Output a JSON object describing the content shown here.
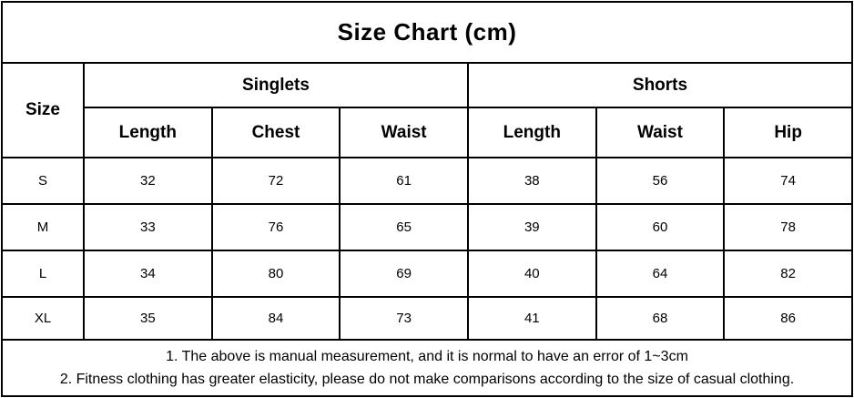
{
  "title": "Size Chart (cm)",
  "chart_data": {
    "type": "table",
    "title": "Size Chart (cm)",
    "row_header": "Size",
    "column_groups": [
      {
        "label": "Singlets",
        "columns": [
          "Length",
          "Chest",
          "Waist"
        ]
      },
      {
        "label": "Shorts",
        "columns": [
          "Length",
          "Waist",
          "Hip"
        ]
      }
    ],
    "rows": [
      {
        "size": "S",
        "values": [
          32,
          72,
          61,
          38,
          56,
          74
        ]
      },
      {
        "size": "M",
        "values": [
          33,
          76,
          65,
          39,
          60,
          78
        ]
      },
      {
        "size": "L",
        "values": [
          34,
          80,
          69,
          40,
          64,
          82
        ]
      },
      {
        "size": "XL",
        "values": [
          35,
          84,
          73,
          41,
          68,
          86
        ]
      }
    ],
    "notes": [
      "1. The above is manual measurement, and it is normal to have an error of 1~3cm",
      "2. Fitness clothing has greater elasticity, please do not make comparisons according to the size of casual clothing."
    ]
  },
  "colors": {
    "text": "#000000",
    "border": "#000000",
    "background": "#ffffff"
  }
}
